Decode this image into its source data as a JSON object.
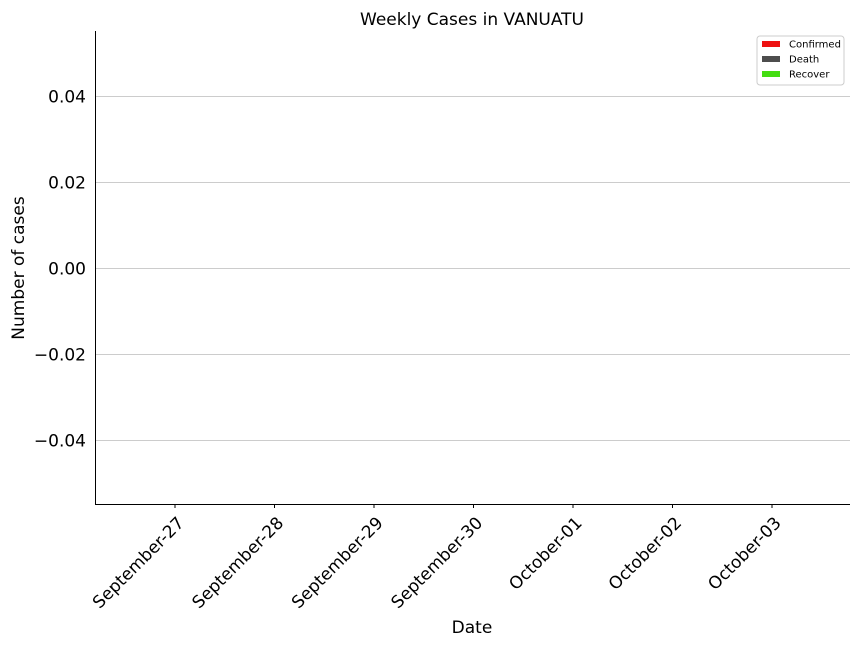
{
  "chart_data": {
    "type": "bar",
    "title": "Weekly Cases in VANUATU",
    "xlabel": "Date",
    "ylabel": "Number of cases",
    "categories": [
      "September-27",
      "September-28",
      "September-29",
      "September-30",
      "October-01",
      "October-02",
      "October-03"
    ],
    "series": [
      {
        "name": "Confirmed",
        "color": "#ee1111",
        "values": [
          0,
          0,
          0,
          0,
          0,
          0,
          0
        ]
      },
      {
        "name": "Death",
        "color": "#4d4d4d",
        "values": [
          0,
          0,
          0,
          0,
          0,
          0,
          0
        ]
      },
      {
        "name": "Recover",
        "color": "#44dd11",
        "values": [
          0,
          0,
          0,
          0,
          0,
          0,
          0
        ]
      }
    ],
    "ylim": [
      -0.055,
      0.055
    ],
    "yticks": [
      0.04,
      0.02,
      0.0,
      -0.02,
      -0.04
    ],
    "ytick_labels": [
      "0.04",
      "0.02",
      "0.00",
      "−0.02",
      "−0.04"
    ],
    "grid": "horizontal",
    "legend_position": "top-right"
  }
}
